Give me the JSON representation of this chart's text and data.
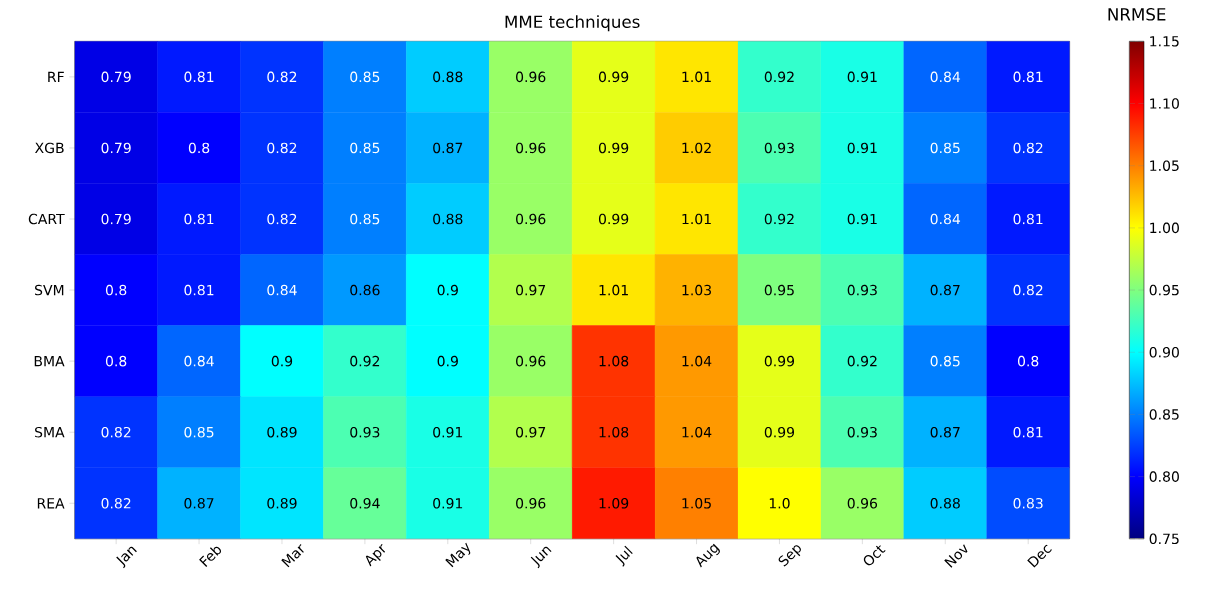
{
  "chart_data": {
    "type": "heatmap",
    "title": "MME techniques",
    "clabel": "NRMSE",
    "categories": [
      "Jan",
      "Feb",
      "Mar",
      "Apr",
      "May",
      "Jun",
      "Jul",
      "Aug",
      "Sep",
      "Oct",
      "Nov",
      "Dec"
    ],
    "y_categories": [
      "RF",
      "XGB",
      "CART",
      "SVM",
      "BMA",
      "SMA",
      "REA"
    ],
    "cells": [
      [
        0.79,
        0.81,
        0.82,
        0.85,
        0.88,
        0.96,
        0.99,
        1.01,
        0.92,
        0.91,
        0.84,
        0.81
      ],
      [
        0.79,
        0.8,
        0.82,
        0.85,
        0.87,
        0.96,
        0.99,
        1.02,
        0.93,
        0.91,
        0.85,
        0.82
      ],
      [
        0.79,
        0.81,
        0.82,
        0.85,
        0.88,
        0.96,
        0.99,
        1.01,
        0.92,
        0.91,
        0.84,
        0.81
      ],
      [
        0.8,
        0.81,
        0.84,
        0.86,
        0.9,
        0.97,
        1.01,
        1.03,
        0.95,
        0.93,
        0.87,
        0.82
      ],
      [
        0.8,
        0.84,
        0.9,
        0.92,
        0.9,
        0.96,
        1.08,
        1.04,
        0.99,
        0.92,
        0.85,
        0.8
      ],
      [
        0.82,
        0.85,
        0.89,
        0.93,
        0.91,
        0.97,
        1.08,
        1.04,
        0.99,
        0.93,
        0.87,
        0.81
      ],
      [
        0.82,
        0.87,
        0.89,
        0.94,
        0.91,
        0.96,
        1.09,
        1.05,
        1.0,
        0.96,
        0.88,
        0.83
      ]
    ],
    "cell_labels": [
      [
        "0.79",
        "0.81",
        "0.82",
        "0.85",
        "0.88",
        "0.96",
        "0.99",
        "1.01",
        "0.92",
        "0.91",
        "0.84",
        "0.81"
      ],
      [
        "0.79",
        "0.8",
        "0.82",
        "0.85",
        "0.87",
        "0.96",
        "0.99",
        "1.02",
        "0.93",
        "0.91",
        "0.85",
        "0.82"
      ],
      [
        "0.79",
        "0.81",
        "0.82",
        "0.85",
        "0.88",
        "0.96",
        "0.99",
        "1.01",
        "0.92",
        "0.91",
        "0.84",
        "0.81"
      ],
      [
        "0.8",
        "0.81",
        "0.84",
        "0.86",
        "0.9",
        "0.97",
        "1.01",
        "1.03",
        "0.95",
        "0.93",
        "0.87",
        "0.82"
      ],
      [
        "0.8",
        "0.84",
        "0.9",
        "0.92",
        "0.9",
        "0.96",
        "1.08",
        "1.04",
        "0.99",
        "0.92",
        "0.85",
        "0.8"
      ],
      [
        "0.82",
        "0.85",
        "0.89",
        "0.93",
        "0.91",
        "0.97",
        "1.08",
        "1.04",
        "0.99",
        "0.93",
        "0.87",
        "0.81"
      ],
      [
        "0.82",
        "0.87",
        "0.89",
        "0.94",
        "0.91",
        "0.96",
        "1.09",
        "1.05",
        "1.0",
        "0.96",
        "0.88",
        "0.83"
      ]
    ],
    "clim": [
      0.75,
      1.15
    ],
    "cticks": [
      0.75,
      {
        "value": 0.8,
        "label": "0.80"
      },
      0.85,
      {
        "value": 0.9,
        "label": "0.90"
      },
      0.95,
      {
        "value": 1.0,
        "label": "1.00"
      },
      1.05,
      {
        "value": 1.1,
        "label": "1.10"
      },
      1.15
    ]
  }
}
